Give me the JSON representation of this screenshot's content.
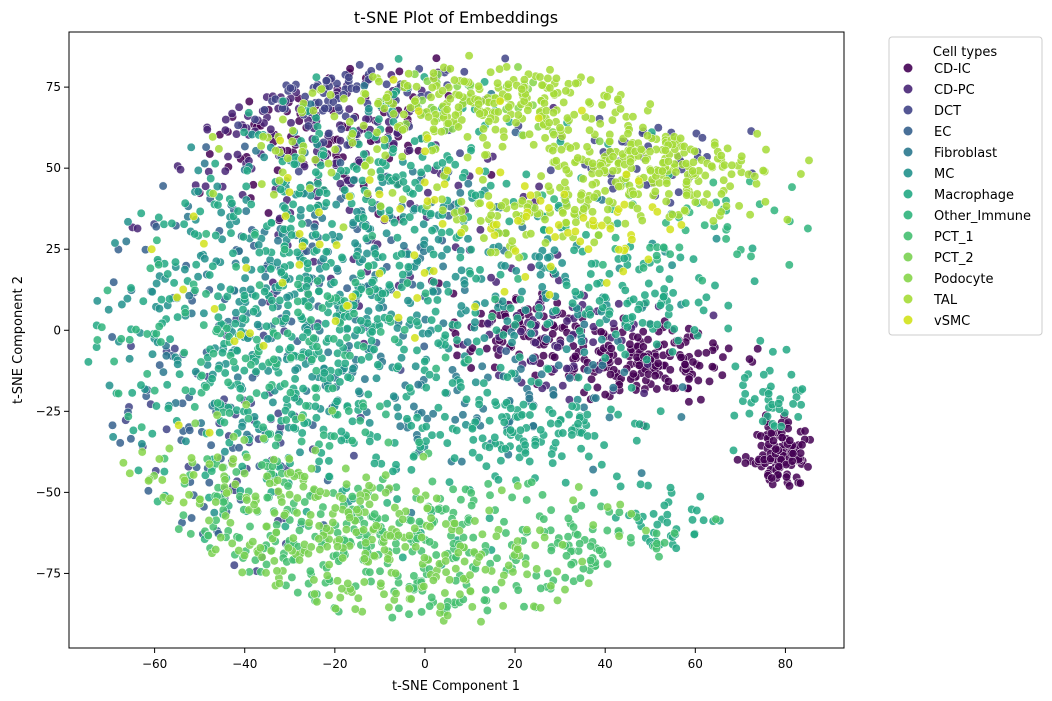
{
  "chart_data": {
    "type": "scatter",
    "title": "t-SNE Plot of Embeddings",
    "xlabel": "t-SNE Component 1",
    "ylabel": "t-SNE Component 2",
    "xlim": [
      -79,
      93
    ],
    "ylim": [
      -98,
      92
    ],
    "xticks": [
      "−60",
      "−40",
      "−20",
      "0",
      "20",
      "40",
      "60",
      "80"
    ],
    "xtick_values": [
      -60,
      -40,
      -20,
      0,
      20,
      40,
      60,
      80
    ],
    "yticks": [
      "−75",
      "−50",
      "−25",
      "0",
      "25",
      "50",
      "75"
    ],
    "ytick_values": [
      -75,
      -50,
      -25,
      0,
      25,
      50,
      75
    ],
    "grid": false,
    "legend": {
      "title": "Cell types",
      "placement": "outside-right"
    },
    "series": [
      {
        "name": "CD-IC",
        "color": "#440154",
        "regions": [
          {
            "center": [
              79,
              -38
            ],
            "spread": [
              3.5,
              5
            ],
            "n": 120
          },
          {
            "center": [
              50,
              -10
            ],
            "spread": [
              10,
              6
            ],
            "n": 170
          },
          {
            "center": [
              20,
              0
            ],
            "spread": [
              8,
              7
            ],
            "n": 90
          },
          {
            "center": [
              -20,
              60
            ],
            "spread": [
              15,
              12
            ],
            "n": 100
          }
        ]
      },
      {
        "name": "CD-PC",
        "color": "#482576",
        "regions": [
          {
            "center": [
              -30,
              60
            ],
            "spread": [
              18,
              12
            ],
            "n": 110
          },
          {
            "center": [
              30,
              0
            ],
            "spread": [
              10,
              8
            ],
            "n": 70
          },
          {
            "center": [
              -10,
              30
            ],
            "spread": [
              20,
              15
            ],
            "n": 50
          }
        ]
      },
      {
        "name": "DCT",
        "color": "#414487",
        "regions": [
          {
            "center": [
              -20,
              70
            ],
            "spread": [
              15,
              7
            ],
            "n": 90
          },
          {
            "center": [
              -40,
              -30
            ],
            "spread": [
              15,
              20
            ],
            "n": 60
          },
          {
            "center": [
              50,
              55
            ],
            "spread": [
              12,
              8
            ],
            "n": 40
          }
        ]
      },
      {
        "name": "EC",
        "color": "#35608d",
        "regions": [
          {
            "center": [
              -30,
              20
            ],
            "spread": [
              20,
              20
            ],
            "n": 80
          },
          {
            "center": [
              -50,
              -40
            ],
            "spread": [
              10,
              15
            ],
            "n": 40
          }
        ]
      },
      {
        "name": "Fibroblast",
        "color": "#2a788e",
        "regions": [
          {
            "center": [
              -20,
              10
            ],
            "spread": [
              25,
              25
            ],
            "n": 140
          },
          {
            "center": [
              20,
              -20
            ],
            "spread": [
              15,
              12
            ],
            "n": 60
          }
        ]
      },
      {
        "name": "MC",
        "color": "#21918c",
        "regions": [
          {
            "center": [
              -30,
              10
            ],
            "spread": [
              22,
              25
            ],
            "n": 260
          },
          {
            "center": [
              20,
              15
            ],
            "spread": [
              18,
              15
            ],
            "n": 110
          }
        ]
      },
      {
        "name": "Macrophage",
        "color": "#22a884",
        "regions": [
          {
            "center": [
              -25,
              0
            ],
            "spread": [
              22,
              28
            ],
            "n": 440
          },
          {
            "center": [
              25,
              -30
            ],
            "spread": [
              12,
              8
            ],
            "n": 120
          },
          {
            "center": [
              50,
              10
            ],
            "spread": [
              10,
              8
            ],
            "n": 90
          },
          {
            "center": [
              -10,
              50
            ],
            "spread": [
              20,
              15
            ],
            "n": 150
          },
          {
            "center": [
              78,
              -20
            ],
            "spread": [
              5,
              6
            ],
            "n": 40
          },
          {
            "center": [
              55,
              -62
            ],
            "spread": [
              6,
              6
            ],
            "n": 40
          }
        ]
      },
      {
        "name": "Other_Immune",
        "color": "#2fb47c",
        "regions": [
          {
            "center": [
              -35,
              -10
            ],
            "spread": [
              20,
              20
            ],
            "n": 160
          },
          {
            "center": [
              60,
              30
            ],
            "spread": [
              15,
              8
            ],
            "n": 50
          }
        ]
      },
      {
        "name": "PCT_1",
        "color": "#44bf70",
        "regions": [
          {
            "center": [
              -10,
              -70
            ],
            "spread": [
              25,
              12
            ],
            "n": 220
          },
          {
            "center": [
              30,
              -65
            ],
            "spread": [
              15,
              8
            ],
            "n": 80
          },
          {
            "center": [
              -30,
              -55
            ],
            "spread": [
              15,
              12
            ],
            "n": 60
          }
        ]
      },
      {
        "name": "PCT_2",
        "color": "#7ad151",
        "regions": [
          {
            "center": [
              -10,
              -70
            ],
            "spread": [
              22,
              10
            ],
            "n": 220
          },
          {
            "center": [
              -30,
              -50
            ],
            "spread": [
              15,
              10
            ],
            "n": 80
          }
        ]
      },
      {
        "name": "Podocyte",
        "color": "#86d549",
        "regions": [
          {
            "center": [
              -50,
              -45
            ],
            "spread": [
              10,
              10
            ],
            "n": 25
          },
          {
            "center": [
              10,
              70
            ],
            "spread": [
              15,
              6
            ],
            "n": 30
          }
        ]
      },
      {
        "name": "TAL",
        "color": "#a5db36",
        "regions": [
          {
            "center": [
              50,
              50
            ],
            "spread": [
              14,
              9
            ],
            "n": 260
          },
          {
            "center": [
              15,
              70
            ],
            "spread": [
              15,
              6
            ],
            "n": 200
          },
          {
            "center": [
              -20,
              60
            ],
            "spread": [
              15,
              10
            ],
            "n": 60
          },
          {
            "center": [
              20,
              35
            ],
            "spread": [
              10,
              6
            ],
            "n": 60
          }
        ]
      },
      {
        "name": "vSMC",
        "color": "#d2e21b",
        "regions": [
          {
            "center": [
              10,
              40
            ],
            "spread": [
              20,
              15
            ],
            "n": 50
          },
          {
            "center": [
              -30,
              20
            ],
            "spread": [
              20,
              20
            ],
            "n": 30
          },
          {
            "center": [
              40,
              30
            ],
            "spread": [
              8,
              6
            ],
            "n": 25
          }
        ]
      }
    ]
  }
}
